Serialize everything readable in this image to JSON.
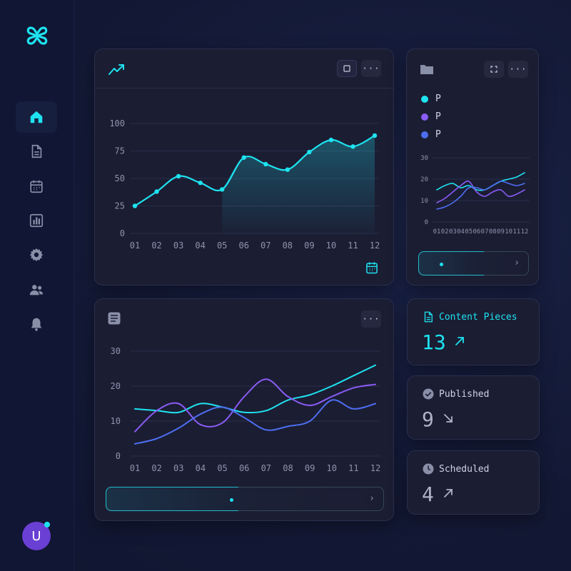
{
  "colors": {
    "accent": "#1ee3f0",
    "purple": "#8b5cf6",
    "blue": "#4d6ef0",
    "muted": "#8e93ac"
  },
  "sidebar": {
    "logo_icon": "logo-knot-icon",
    "items": [
      {
        "name": "home",
        "icon": "home-icon",
        "active": true
      },
      {
        "name": "documents",
        "icon": "document-icon",
        "active": false
      },
      {
        "name": "calendar",
        "icon": "calendar-icon",
        "active": false
      },
      {
        "name": "analytics",
        "icon": "bar-chart-icon",
        "active": false
      },
      {
        "name": "settings",
        "icon": "gear-icon",
        "active": false
      },
      {
        "name": "team",
        "icon": "users-icon",
        "active": false
      },
      {
        "name": "notifications",
        "icon": "bell-icon",
        "active": false
      }
    ],
    "avatar_initial": "U"
  },
  "main_chart": {
    "header_icon": "trending-up-icon",
    "expand_icon": "square-icon",
    "menu_label": "···",
    "footer_icon": "calendar-icon",
    "chart_data": {
      "type": "area",
      "x": [
        "01",
        "02",
        "03",
        "04",
        "05",
        "06",
        "07",
        "08",
        "09",
        "10",
        "11",
        "12"
      ],
      "yticks": [
        "100",
        "75",
        "50",
        "25",
        "0"
      ],
      "ylim": [
        0,
        100
      ],
      "series": [
        {
          "values": [
            25,
            38,
            52,
            46,
            40,
            69,
            63,
            58,
            74,
            85,
            79,
            89
          ]
        }
      ],
      "grid": true
    }
  },
  "mini_chart": {
    "header_icon": "folder-icon",
    "expand_icon": "expand-icon",
    "menu_label": "···",
    "legend": [
      {
        "label": "P",
        "color": "#1ee3f0"
      },
      {
        "label": "P",
        "color": "#8b5cf6"
      },
      {
        "label": "P",
        "color": "#4d6ef0"
      }
    ],
    "chart_data": {
      "type": "line",
      "x": [
        "01",
        "02",
        "03",
        "04",
        "05",
        "06",
        "07",
        "08",
        "09",
        "10",
        "11",
        "12"
      ],
      "xticks": [
        "01",
        "02",
        "03",
        "04",
        "05",
        "06",
        "07",
        "08",
        "09",
        "10",
        "11",
        "12"
      ],
      "yticks": [
        "30",
        "20",
        "10",
        "0"
      ],
      "ylim": [
        0,
        30
      ],
      "series": [
        {
          "color": "#1ee3f0",
          "values": [
            15,
            17,
            18,
            16,
            17,
            15,
            15,
            17,
            19,
            20,
            21,
            23
          ]
        },
        {
          "color": "#8b5cf6",
          "values": [
            9,
            11,
            14,
            17,
            19,
            14,
            12,
            14,
            15,
            12,
            13,
            15
          ]
        },
        {
          "color": "#4d6ef0",
          "values": [
            6,
            7,
            9,
            12,
            16,
            16,
            15,
            17,
            19,
            18,
            17,
            18
          ]
        }
      ],
      "grid": true
    },
    "footer_arrow": "›"
  },
  "bottom_chart": {
    "header_icon": "list-icon",
    "menu_label": "···",
    "chart_data": {
      "type": "line",
      "x": [
        "01",
        "02",
        "03",
        "04",
        "05",
        "06",
        "07",
        "08",
        "09",
        "10",
        "11",
        "12"
      ],
      "yticks": [
        "30",
        "20",
        "10",
        "0"
      ],
      "ylim": [
        0,
        30
      ],
      "series": [
        {
          "color": "#1ee3f0",
          "values": [
            13.5,
            13,
            12.5,
            15,
            14,
            12.5,
            13,
            16,
            17.5,
            20,
            23,
            26
          ]
        },
        {
          "color": "#8b5cf6",
          "values": [
            7,
            13,
            15,
            9,
            9.5,
            17,
            22,
            17,
            14.5,
            17,
            19.5,
            20.5
          ]
        },
        {
          "color": "#4d6ef0",
          "values": [
            3.5,
            5,
            8,
            12,
            14,
            11,
            7.5,
            8.5,
            10,
            16,
            13.5,
            15
          ]
        }
      ],
      "grid": true
    },
    "footer_arrow": "›"
  },
  "stats": [
    {
      "title": "Content Pieces",
      "value": "13",
      "icon": "document-icon",
      "trend_icon": "arrow-up-right-icon",
      "accent": true
    },
    {
      "title": "Published",
      "value": "9",
      "icon": "check-circle-icon",
      "trend_icon": "arrow-down-right-icon",
      "accent": false
    },
    {
      "title": "Scheduled",
      "value": "4",
      "icon": "clock-icon",
      "trend_icon": "arrow-up-right-icon",
      "accent": false
    }
  ]
}
